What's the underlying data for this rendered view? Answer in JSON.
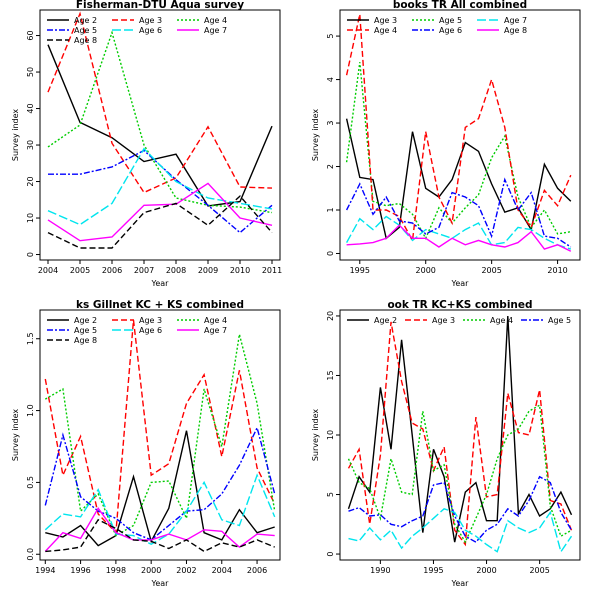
{
  "figure": {
    "background": "#ffffff"
  },
  "charts": [
    {
      "id": "p1",
      "type": "line",
      "title": "Fisherman-DTU Aqua survey",
      "xlabel": "Year",
      "ylabel": "Survey index",
      "xlim": [
        2003.75,
        2011.25
      ],
      "ylim": [
        -1.5,
        67
      ],
      "xticks": [
        2004,
        2005,
        2006,
        2007,
        2008,
        2009,
        2010,
        2011
      ],
      "yticks": [
        0,
        10,
        20,
        30,
        40,
        50,
        60
      ],
      "legend_position": "top-left",
      "legend_columns": 3,
      "grid": false,
      "series": [
        {
          "name": "Age 2",
          "color": "#000000",
          "dash": "solid",
          "x": [
            2004,
            2005,
            2006,
            2007,
            2008,
            2009,
            2010,
            2011
          ],
          "y": [
            57.5,
            36.2,
            32,
            25.5,
            27.5,
            13.3,
            14.5,
            35.2
          ]
        },
        {
          "name": "Age 3",
          "color": "#ff0000",
          "dash": "dashed",
          "x": [
            2004,
            2005,
            2006,
            2007,
            2008,
            2009,
            2010,
            2011
          ],
          "y": [
            44.5,
            66,
            30.5,
            17,
            21,
            35,
            18.5,
            18.2
          ]
        },
        {
          "name": "Age 4",
          "color": "#00cc00",
          "dash": "dotted",
          "x": [
            2004,
            2005,
            2006,
            2007,
            2008,
            2009,
            2010,
            2011
          ],
          "y": [
            29.5,
            35.5,
            60.8,
            30,
            15.5,
            13.5,
            13,
            11.5
          ]
        },
        {
          "name": "Age 5",
          "color": "#0000ff",
          "dash": "dashdot",
          "x": [
            2004,
            2005,
            2006,
            2007,
            2008,
            2009,
            2010,
            2011
          ],
          "y": [
            22,
            22,
            24,
            28.5,
            20.5,
            13.5,
            6,
            13.5
          ]
        },
        {
          "name": "Age 6",
          "color": "#00e5ee",
          "dash": "longdash",
          "x": [
            2004,
            2005,
            2006,
            2007,
            2008,
            2009,
            2010,
            2011
          ],
          "y": [
            12,
            8.2,
            14,
            29,
            20,
            15.5,
            14,
            12.5
          ]
        },
        {
          "name": "Age 7",
          "color": "#ff00ff",
          "dash": "solid",
          "x": [
            2004,
            2005,
            2006,
            2007,
            2008,
            2009,
            2010,
            2011
          ],
          "y": [
            9.5,
            3.8,
            4.8,
            13.5,
            13.8,
            19.5,
            10,
            8
          ]
        },
        {
          "name": "Age 8",
          "color": "#000000",
          "dash": "dashed",
          "x": [
            2004,
            2005,
            2006,
            2007,
            2008,
            2009,
            2010,
            2011
          ],
          "y": [
            6,
            1.8,
            1.8,
            11.5,
            14,
            8,
            16,
            6
          ]
        }
      ]
    },
    {
      "id": "p2",
      "type": "line",
      "title": "books TR All combined",
      "xlabel": "Year",
      "ylabel": "Survey index",
      "xlim": [
        1993.5,
        2011.7
      ],
      "ylim": [
        -0.15,
        5.6
      ],
      "xticks": [
        1995,
        2000,
        2005,
        2010
      ],
      "yticks": [
        0,
        1,
        2,
        3,
        4,
        5
      ],
      "legend_position": "top-left",
      "legend_columns": 3,
      "grid": false,
      "series": [
        {
          "name": "Age 3",
          "color": "#000000",
          "dash": "solid",
          "x": [
            1994,
            1995,
            1996,
            1997,
            1998,
            1999,
            2000,
            2001,
            2002,
            2003,
            2004,
            2005,
            2006,
            2007,
            2008,
            2009,
            2010,
            2011
          ],
          "y": [
            3.1,
            1.75,
            1.7,
            0.35,
            0.6,
            2.8,
            1.5,
            1.3,
            1.7,
            2.55,
            2.35,
            1.6,
            0.95,
            1.05,
            0.55,
            2.05,
            1.5,
            1.2
          ]
        },
        {
          "name": "Age 5",
          "color": "#00cc00",
          "dash": "dotted",
          "x": [
            1994,
            1995,
            1996,
            1997,
            1998,
            1999,
            2000,
            2001,
            2002,
            2003,
            2004,
            2005,
            2006,
            2007,
            2008,
            2009,
            2010,
            2011
          ],
          "y": [
            2.1,
            4.4,
            1.2,
            1.1,
            1.15,
            0.9,
            0.35,
            1.05,
            0.7,
            1.05,
            1.35,
            2.2,
            2.7,
            1.3,
            0.6,
            1.0,
            0.45,
            0.5
          ]
        },
        {
          "name": "Age 7",
          "color": "#00e5ee",
          "dash": "longdash",
          "x": [
            1994,
            1995,
            1996,
            1997,
            1998,
            1999,
            2000,
            2001,
            2002,
            2003,
            2004,
            2005,
            2006,
            2007,
            2008,
            2009,
            2010,
            2011
          ],
          "y": [
            0.25,
            0.8,
            0.55,
            0.85,
            0.65,
            0.3,
            0.55,
            0.45,
            0.35,
            0.55,
            0.7,
            0.2,
            0.25,
            0.6,
            0.55,
            0.35,
            0.2,
            0.1
          ]
        },
        {
          "name": "Age 4",
          "color": "#ff0000",
          "dash": "dashed",
          "x": [
            1994,
            1995,
            1996,
            1997,
            1998,
            1999,
            2000,
            2001,
            2002,
            2003,
            2004,
            2005,
            2006,
            2007,
            2008,
            2009,
            2010,
            2011
          ],
          "y": [
            4.1,
            5.5,
            1.0,
            1.0,
            0.85,
            0.3,
            2.8,
            1.3,
            0.7,
            2.9,
            3.1,
            4.0,
            2.9,
            1.0,
            0.6,
            1.45,
            1.1,
            1.8
          ]
        },
        {
          "name": "Age 6",
          "color": "#0000ff",
          "dash": "dashdot",
          "x": [
            1994,
            1995,
            1996,
            1997,
            1998,
            1999,
            2000,
            2001,
            2002,
            2003,
            2004,
            2005,
            2006,
            2007,
            2008,
            2009,
            2010,
            2011
          ],
          "y": [
            1.0,
            1.6,
            0.9,
            1.3,
            0.75,
            0.7,
            0.45,
            0.6,
            1.4,
            1.3,
            1.1,
            0.4,
            1.7,
            1.0,
            1.4,
            0.4,
            0.35,
            0.15
          ]
        },
        {
          "name": "Age 8",
          "color": "#ff00ff",
          "dash": "solid",
          "x": [
            1994,
            1995,
            1996,
            1997,
            1998,
            1999,
            2000,
            2001,
            2002,
            2003,
            2004,
            2005,
            2006,
            2007,
            2008,
            2009,
            2010,
            2011
          ],
          "y": [
            0.2,
            0.22,
            0.25,
            0.35,
            0.65,
            0.35,
            0.35,
            0.15,
            0.35,
            0.2,
            0.3,
            0.2,
            0.15,
            0.25,
            0.5,
            0.1,
            0.2,
            0.05
          ]
        }
      ]
    },
    {
      "id": "p3",
      "type": "line",
      "title": "ks Gillnet KC + KS combined",
      "xlabel": "Year",
      "ylabel": "Survey index",
      "xlim": [
        1993.7,
        2007.3
      ],
      "ylim": [
        -0.04,
        1.7
      ],
      "xticks": [
        1994,
        1996,
        1998,
        2000,
        2002,
        2004,
        2006
      ],
      "yticks": [
        0.0,
        0.5,
        1.0,
        1.5
      ],
      "legend_position": "top-left",
      "legend_columns": 3,
      "grid": false,
      "series": [
        {
          "name": "Age 2",
          "color": "#000000",
          "dash": "solid",
          "x": [
            1994,
            1995,
            1996,
            1997,
            1998,
            1999,
            2000,
            2001,
            2002,
            2003,
            2004,
            2005,
            2006,
            2007
          ],
          "y": [
            0.15,
            0.12,
            0.2,
            0.06,
            0.13,
            0.54,
            0.09,
            0.32,
            0.86,
            0.15,
            0.1,
            0.31,
            0.15,
            0.19
          ]
        },
        {
          "name": "Age 3",
          "color": "#ff0000",
          "dash": "dashed",
          "x": [
            1994,
            1995,
            1996,
            1997,
            1998,
            1999,
            2000,
            2001,
            2002,
            2003,
            2004,
            2005,
            2006,
            2007
          ],
          "y": [
            1.22,
            0.55,
            0.82,
            0.28,
            0.15,
            1.63,
            0.55,
            0.63,
            1.05,
            1.25,
            0.68,
            1.28,
            0.6,
            0.35
          ]
        },
        {
          "name": "Age 4",
          "color": "#00cc00",
          "dash": "dotted",
          "x": [
            1994,
            1995,
            1996,
            1997,
            1998,
            1999,
            2000,
            2001,
            2002,
            2003,
            2004,
            2005,
            2006,
            2007
          ],
          "y": [
            1.08,
            1.15,
            0.3,
            0.42,
            0.13,
            0.2,
            0.5,
            0.51,
            0.25,
            1.15,
            0.75,
            1.53,
            1.05,
            0.3
          ]
        },
        {
          "name": "Age 5",
          "color": "#0000ff",
          "dash": "dashdot",
          "x": [
            1994,
            1995,
            1996,
            1997,
            1998,
            1999,
            2000,
            2001,
            2002,
            2003,
            2004,
            2005,
            2006,
            2007
          ],
          "y": [
            0.34,
            0.83,
            0.4,
            0.3,
            0.25,
            0.15,
            0.1,
            0.2,
            0.3,
            0.31,
            0.42,
            0.62,
            0.88,
            0.42
          ]
        },
        {
          "name": "Age 6",
          "color": "#00e5ee",
          "dash": "longdash",
          "x": [
            1994,
            1995,
            1996,
            1997,
            1998,
            1999,
            2000,
            2001,
            2002,
            2003,
            2004,
            2005,
            2006,
            2007
          ],
          "y": [
            0.17,
            0.28,
            0.26,
            0.45,
            0.14,
            0.13,
            0.07,
            0.14,
            0.3,
            0.5,
            0.24,
            0.2,
            0.55,
            0.26
          ]
        },
        {
          "name": "Age 7",
          "color": "#ff00ff",
          "dash": "solid",
          "x": [
            1994,
            1995,
            1996,
            1997,
            1998,
            1999,
            2000,
            2001,
            2002,
            2003,
            2004,
            2005,
            2006,
            2007
          ],
          "y": [
            0.02,
            0.15,
            0.11,
            0.32,
            0.15,
            0.1,
            0.1,
            0.14,
            0.1,
            0.17,
            0.16,
            0.05,
            0.14,
            0.13
          ]
        },
        {
          "name": "Age 8",
          "color": "#000000",
          "dash": "dashed",
          "x": [
            1994,
            1995,
            1996,
            1997,
            1998,
            1999,
            2000,
            2001,
            2002,
            2003,
            2004,
            2005,
            2006,
            2007
          ],
          "y": [
            0.02,
            0.03,
            0.05,
            0.24,
            0.18,
            0.1,
            0.09,
            0.04,
            0.1,
            0.02,
            0.08,
            0.05,
            0.1,
            0.05
          ]
        }
      ]
    },
    {
      "id": "p4",
      "type": "line",
      "title": "ook TR KC+KS combined",
      "xlabel": "Year",
      "ylabel": "Survey index",
      "xlim": [
        1986.2,
        2008.8
      ],
      "ylim": [
        -0.5,
        20.5
      ],
      "xticks": [
        1990,
        1995,
        2000,
        2005
      ],
      "yticks": [
        0,
        5,
        10,
        15,
        20
      ],
      "legend_position": "top-left",
      "legend_columns": 4,
      "grid": false,
      "series": [
        {
          "name": "Age 2",
          "color": "#000000",
          "dash": "solid",
          "x": [
            1987,
            1988,
            1989,
            1990,
            1991,
            1992,
            1993,
            1994,
            1995,
            1996,
            1997,
            1998,
            1999,
            2000,
            2001,
            2002,
            2003,
            2004,
            2005,
            2006,
            2007,
            2008
          ],
          "y": [
            3.8,
            6.5,
            5.2,
            14.0,
            8.8,
            18.0,
            10.0,
            1.8,
            8.8,
            6.5,
            1.0,
            5.2,
            6.0,
            2.8,
            2.8,
            20.0,
            3.4,
            5.0,
            3.2,
            3.8,
            5.2,
            3.3
          ]
        },
        {
          "name": "Age 3",
          "color": "#ff0000",
          "dash": "dashed",
          "x": [
            1987,
            1988,
            1989,
            1990,
            1991,
            1992,
            1993,
            1994,
            1995,
            1996,
            1997,
            1998,
            1999,
            2000,
            2001,
            2002,
            2003,
            2004,
            2005,
            2006,
            2007,
            2008
          ],
          "y": [
            7.2,
            8.8,
            2.5,
            8.3,
            19.5,
            14.5,
            11.0,
            10.5,
            7.0,
            9.0,
            2.0,
            0.8,
            11.5,
            4.8,
            5.0,
            13.5,
            10.2,
            10.0,
            13.8,
            4.5,
            4.2,
            2.0
          ]
        },
        {
          "name": "Age 4",
          "color": "#00cc00",
          "dash": "dotted",
          "x": [
            1987,
            1988,
            1989,
            1990,
            1991,
            1992,
            1993,
            1994,
            1995,
            1996,
            1997,
            1998,
            1999,
            2000,
            2001,
            2002,
            2003,
            2004,
            2005,
            2006,
            2007,
            2008
          ],
          "y": [
            8.0,
            6.0,
            5.5,
            3.0,
            8.0,
            5.2,
            5.0,
            12.0,
            7.0,
            7.5,
            2.5,
            1.0,
            3.0,
            5.0,
            8.0,
            10.0,
            10.5,
            12.0,
            12.5,
            4.0,
            1.5,
            2.0
          ]
        },
        {
          "name": "Age 5",
          "color": "#0000ff",
          "dash": "dashdot",
          "x": [
            1987,
            1988,
            1989,
            1990,
            1991,
            1992,
            1993,
            1994,
            1995,
            1996,
            1997,
            1998,
            1999,
            2000,
            2001,
            2002,
            2003,
            2004,
            2005,
            2006,
            2007,
            2008
          ],
          "y": [
            3.6,
            3.9,
            3.2,
            3.3,
            2.5,
            2.3,
            2.8,
            3.2,
            5.8,
            6.0,
            3.2,
            1.5,
            1.0,
            2.0,
            2.5,
            3.8,
            3.2,
            4.5,
            6.5,
            6.0,
            3.5,
            2.0
          ]
        },
        {
          "name": "",
          "color": "#00e5ee",
          "dash": "longdash",
          "x": [
            1987,
            1988,
            1989,
            1990,
            1991,
            1992,
            1993,
            1994,
            1995,
            1996,
            1997,
            1998,
            1999,
            2000,
            2001,
            2002,
            2003,
            2004,
            2005,
            2006,
            2007,
            2008
          ],
          "y": [
            1.3,
            1.1,
            2.2,
            1.2,
            2.0,
            0.5,
            1.5,
            2.2,
            3.0,
            3.8,
            3.5,
            2.0,
            1.5,
            0.8,
            0.2,
            2.8,
            2.2,
            1.8,
            2.2,
            3.5,
            0.2,
            1.5
          ]
        }
      ]
    }
  ]
}
